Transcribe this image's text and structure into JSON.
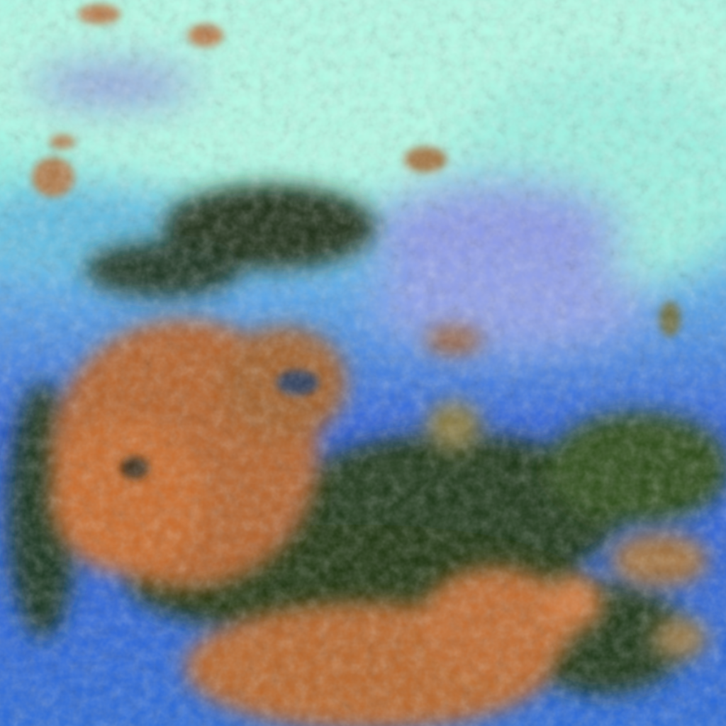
{
  "image": {
    "palette": {
      "high_cloud_cyan": "#8ff5e0",
      "pale_cyan": "#b8fbe8",
      "lavender_haze": "#8f8fe0",
      "ocean_blue": "#2f6fe0",
      "deep_blue": "#1a3fb0",
      "dark_green": "#1f3a12",
      "vegetation_green": "#3f6a20",
      "orange_cloud": "#c8702a",
      "bright_orange": "#e0783a"
    }
  }
}
